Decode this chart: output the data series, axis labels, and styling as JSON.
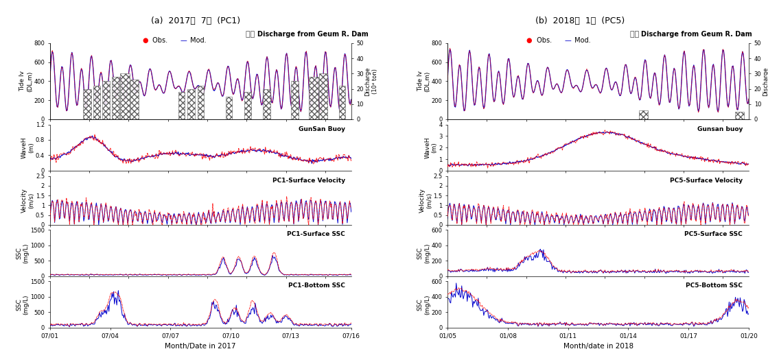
{
  "title_a": "(a)  2017년  7월  (PC1)",
  "title_b": "(b)  2018년  1월  (PC5)",
  "xlabel_a": "Month/Date in 2017",
  "xlabel_b": "Month/date in 2018",
  "xticks_a": [
    "07/01",
    "07/04",
    "07/07",
    "07/10",
    "07/13",
    "07/16"
  ],
  "xticks_b": [
    "01/05",
    "01/08",
    "01/11",
    "01/14",
    "01/17",
    "01/20"
  ],
  "legend_discharge": "Discharge from Geum R. Dam",
  "legend_obs": "Obs.",
  "legend_mod": "Mod.",
  "panel_a": {
    "tide": {
      "ylim": [
        0,
        800
      ],
      "yticks": [
        0,
        200,
        400,
        600,
        800
      ],
      "ylabel": "Tide lv\n(DL,m)",
      "discharge_ylim": [
        0,
        50
      ],
      "discharge_yticks": [
        0,
        10,
        20,
        30,
        40,
        50
      ],
      "discharge_ylabel": "Discharge\n(10⁴ ton)"
    },
    "wave": {
      "ylim": [
        0.0,
        1.2
      ],
      "yticks": [
        0.0,
        0.4,
        0.8,
        1.2
      ],
      "ylabel": "WaveH\n(m)",
      "label": "GunSan Buoy"
    },
    "velocity": {
      "ylim": [
        0.0,
        2.5
      ],
      "yticks": [
        0.0,
        0.5,
        1.0,
        1.5,
        2.0,
        2.5
      ],
      "ylabel": "Velocity\n(m/s)",
      "label": "PC1-Surface Velocity"
    },
    "ssc_surface": {
      "ylim": [
        0,
        1500
      ],
      "yticks": [
        0,
        500,
        1000,
        1500
      ],
      "ylabel": "SSC\n(mg/L)",
      "label": "PC1-Surface SSC"
    },
    "ssc_bottom": {
      "ylim": [
        0,
        1500
      ],
      "yticks": [
        0,
        500,
        1000,
        1500
      ],
      "ylabel": "SSC\n(mg/L)",
      "label": "PC1-Bottom SSC"
    }
  },
  "panel_b": {
    "tide": {
      "ylim": [
        0,
        800
      ],
      "yticks": [
        0,
        200,
        400,
        600,
        800
      ],
      "ylabel": "Tide lv\n(DL,m)",
      "discharge_ylim": [
        0,
        50
      ],
      "discharge_yticks": [
        0,
        10,
        20,
        30,
        40,
        50
      ],
      "discharge_ylabel": "Discharge\n(10⁴ ton)"
    },
    "wave": {
      "ylim": [
        0.0,
        4.0
      ],
      "yticks": [
        0.0,
        1.0,
        2.0,
        3.0,
        4.0
      ],
      "ylabel": "WaveH\n(m)",
      "label": "Gunsan buoy"
    },
    "velocity": {
      "ylim": [
        0.0,
        2.5
      ],
      "yticks": [
        0.0,
        0.5,
        1.0,
        1.5,
        2.0,
        2.5
      ],
      "ylabel": "Velocity\n(m/s)",
      "label": "PC5-Surface Velocity"
    },
    "ssc_surface": {
      "ylim": [
        0,
        600
      ],
      "yticks": [
        0,
        200,
        400,
        600
      ],
      "ylabel": "SSC\n(mg/L)",
      "label": "PC5-Surface SSC"
    },
    "ssc_bottom": {
      "ylim": [
        0,
        600
      ],
      "yticks": [
        0,
        200,
        400,
        600
      ],
      "ylabel": "SSC\n(mg/L)",
      "label": "PC5-Bottom SSC"
    }
  },
  "colors": {
    "obs": "#FF0000",
    "mod": "#0000CC"
  }
}
